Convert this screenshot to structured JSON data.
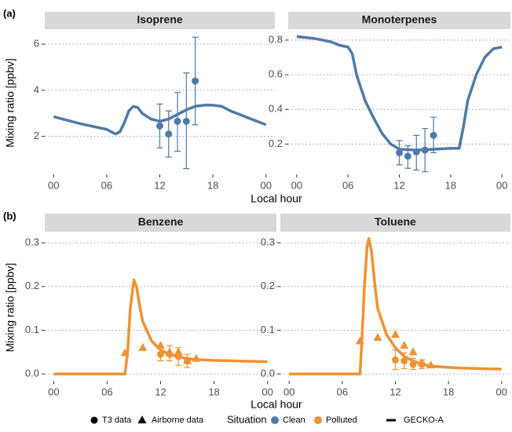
{
  "rows": [
    {
      "label": "(a)",
      "xlabel": "Local hour",
      "ylabel": "Mixing ratio [ppbv]"
    },
    {
      "label": "(b)",
      "xlabel": "Local hour",
      "ylabel": "Mixing ratio [ppbv]"
    }
  ],
  "legend": {
    "shape_items": [
      "T3 data",
      "Airborne data"
    ],
    "title": "Situation",
    "color_items": [
      {
        "label": "Clean",
        "color": "#4f7aa6"
      },
      {
        "label": "Polluted",
        "color": "#ee9233"
      }
    ],
    "line_item": "GECKO-A"
  },
  "chart_data": [
    {
      "type": "line",
      "title": "Isoprene",
      "color": "#4f7aa6",
      "grid": "y",
      "xlim": [
        -1,
        25
      ],
      "ylim": [
        0.35,
        6.55
      ],
      "xticks": [
        {
          "value": 0,
          "label": "00"
        },
        {
          "value": 6,
          "label": "06"
        },
        12,
        18,
        {
          "value": 24,
          "label": "00"
        }
      ],
      "yticks": [
        2,
        4,
        6
      ],
      "gecko": {
        "x": [
          0,
          3,
          6,
          6.5,
          7,
          7.5,
          8,
          8.5,
          9,
          9.5,
          10,
          11,
          12,
          13,
          14,
          15,
          16,
          17,
          18,
          19,
          20,
          22,
          24
        ],
        "values": [
          2.85,
          2.55,
          2.3,
          2.2,
          2.1,
          2.2,
          2.6,
          3.1,
          3.3,
          3.25,
          3.0,
          2.75,
          2.65,
          2.75,
          2.95,
          3.15,
          3.3,
          3.35,
          3.35,
          3.3,
          3.1,
          2.8,
          2.5
        ]
      },
      "t3": {
        "x": [
          12,
          13,
          14,
          15,
          16
        ],
        "values": [
          2.45,
          2.1,
          2.65,
          2.65,
          4.4
        ],
        "lower": [
          1.5,
          1.1,
          1.35,
          0.6,
          2.5
        ],
        "upper": [
          3.4,
          3.1,
          3.9,
          4.75,
          6.3
        ]
      }
    },
    {
      "type": "line",
      "title": "Monoterpenes",
      "color": "#4f7aa6",
      "grid": "y",
      "xlim": [
        -1,
        25
      ],
      "ylim": [
        0.025,
        0.85
      ],
      "xticks": [
        {
          "value": 0,
          "label": "00"
        },
        {
          "value": 6,
          "label": "06"
        },
        12,
        18,
        {
          "value": 24,
          "label": "00"
        }
      ],
      "yticks": [
        0.2,
        0.4,
        0.6,
        0.8
      ],
      "gecko": {
        "x": [
          0,
          2,
          4,
          5,
          6,
          6.5,
          7,
          8,
          9,
          10,
          11,
          12,
          14,
          16,
          18,
          19,
          19.5,
          20,
          21,
          22,
          23,
          24
        ],
        "values": [
          0.82,
          0.81,
          0.79,
          0.77,
          0.76,
          0.72,
          0.6,
          0.45,
          0.35,
          0.26,
          0.2,
          0.17,
          0.165,
          0.17,
          0.175,
          0.175,
          0.3,
          0.45,
          0.6,
          0.7,
          0.75,
          0.76
        ]
      },
      "t3": {
        "x": [
          12,
          13,
          14,
          15,
          16
        ],
        "values": [
          0.15,
          0.13,
          0.155,
          0.165,
          0.25
        ],
        "lower": [
          0.08,
          0.06,
          0.05,
          0.04,
          0.15
        ],
        "upper": [
          0.22,
          0.19,
          0.25,
          0.29,
          0.355
        ]
      }
    },
    {
      "type": "line",
      "title": "Benzene",
      "color": "#ee9233",
      "grid": "y",
      "xlim": [
        -1,
        25
      ],
      "ylim": [
        -0.016,
        0.32
      ],
      "xticks": [
        {
          "value": 0,
          "label": "00"
        },
        {
          "value": 6,
          "label": "06"
        },
        12,
        18,
        {
          "value": 24,
          "label": "00"
        }
      ],
      "yticks": [
        {
          "value": 0,
          "label": "0.0"
        },
        0.1,
        0.2,
        0.3
      ],
      "gecko": {
        "x": [
          0,
          8,
          8.3,
          8.6,
          9,
          9.3,
          9.7,
          10,
          11,
          12,
          13,
          14,
          15,
          16,
          18,
          20,
          22,
          24
        ],
        "values": [
          0,
          0,
          0.05,
          0.15,
          0.215,
          0.2,
          0.15,
          0.12,
          0.075,
          0.055,
          0.045,
          0.04,
          0.035,
          0.033,
          0.031,
          0.03,
          0.029,
          0.028
        ]
      },
      "t3": {
        "x": [
          12,
          13,
          14,
          15
        ],
        "values": [
          0.045,
          0.045,
          0.04,
          0.03
        ],
        "lower": [
          0.03,
          0.03,
          0.02,
          0.015
        ],
        "upper": [
          0.06,
          0.065,
          0.06,
          0.045
        ]
      },
      "airborne": {
        "x": [
          8,
          10,
          12,
          13,
          14,
          15,
          16
        ],
        "values": [
          0.048,
          0.06,
          0.065,
          0.05,
          0.05,
          0.03,
          0.035
        ]
      }
    },
    {
      "type": "line",
      "title": "Toluene",
      "color": "#ee9233",
      "grid": "y",
      "xlim": [
        -1,
        25
      ],
      "ylim": [
        -0.016,
        0.32
      ],
      "xticks": [
        {
          "value": 0,
          "label": "00"
        },
        {
          "value": 6,
          "label": "06"
        },
        12,
        18,
        {
          "value": 24,
          "label": "00"
        }
      ],
      "yticks": [
        {
          "value": 0,
          "label": "0.0"
        },
        0.1,
        0.2,
        0.3
      ],
      "gecko": {
        "x": [
          0,
          8,
          8.2,
          8.5,
          8.8,
          9,
          9.3,
          9.7,
          10,
          11,
          12,
          13,
          14,
          15,
          16,
          18,
          20,
          24
        ],
        "values": [
          0,
          0,
          0.07,
          0.2,
          0.29,
          0.31,
          0.28,
          0.2,
          0.15,
          0.09,
          0.06,
          0.04,
          0.03,
          0.022,
          0.018,
          0.015,
          0.013,
          0.011
        ]
      },
      "t3": {
        "x": [
          12,
          13,
          14,
          15
        ],
        "values": [
          0.032,
          0.03,
          0.022,
          0.022
        ],
        "lower": [
          0.01,
          0.012,
          0.01,
          0.012
        ],
        "upper": [
          0.055,
          0.048,
          0.035,
          0.032
        ]
      },
      "airborne": {
        "x": [
          8,
          10,
          12,
          13,
          14,
          15,
          16
        ],
        "values": [
          0.075,
          0.083,
          0.09,
          0.065,
          0.05,
          0.025,
          0.02
        ]
      }
    }
  ]
}
